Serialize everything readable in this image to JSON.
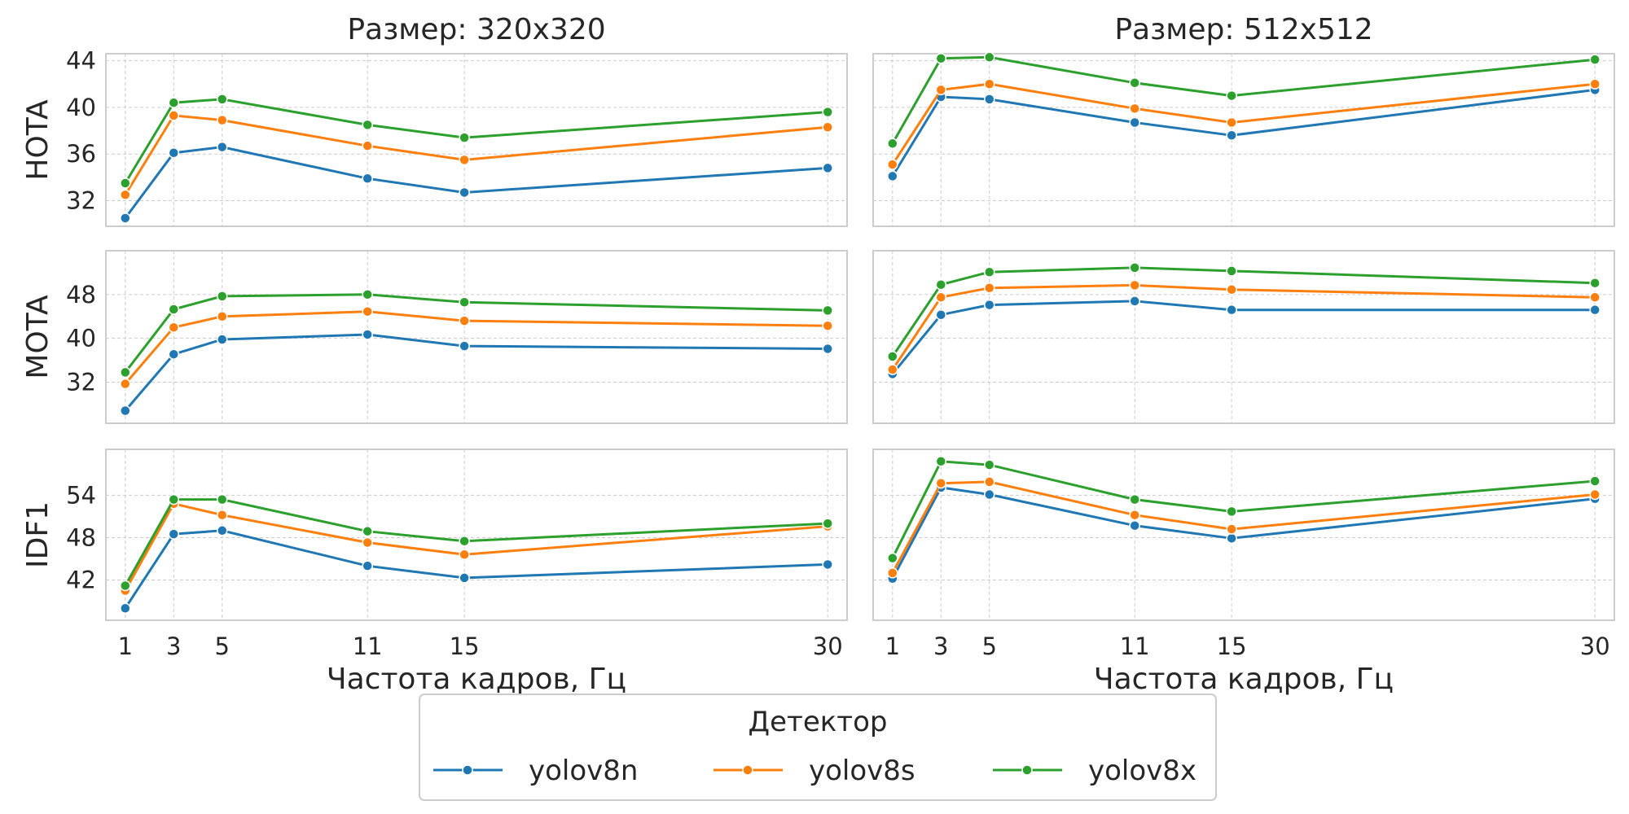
{
  "chart_data": {
    "type": "line",
    "x": [
      1,
      3,
      5,
      11,
      15,
      30
    ],
    "xlabel": "Частота кадров, Гц",
    "columns": [
      {
        "title": "Размер: 320x320"
      },
      {
        "title": "Размер: 512x512"
      }
    ],
    "rows": [
      {
        "ylabel": "HOTA",
        "ylim": [
          29.8,
          44.6
        ],
        "yticks": [
          32,
          36,
          40,
          44
        ]
      },
      {
        "ylabel": "MOTA",
        "ylim": [
          24.5,
          56.0
        ],
        "yticks": [
          32,
          40,
          48
        ]
      },
      {
        "ylabel": "IDF1",
        "ylim": [
          36.3,
          60.5
        ],
        "yticks": [
          42,
          48,
          54
        ]
      }
    ],
    "legend": {
      "title": "Детектор",
      "position": "bottom-center",
      "entries": [
        "yolov8n",
        "yolov8s",
        "yolov8x"
      ]
    },
    "colors": {
      "yolov8n": "#1f77b4",
      "yolov8s": "#ff7f0e",
      "yolov8x": "#2ca02c"
    },
    "grid": true,
    "panels": [
      {
        "row": 0,
        "col": 0,
        "series": [
          {
            "name": "yolov8n",
            "values": [
              30.5,
              36.1,
              36.6,
              33.9,
              32.7,
              34.8
            ]
          },
          {
            "name": "yolov8s",
            "values": [
              32.5,
              39.3,
              38.9,
              36.7,
              35.5,
              38.3
            ]
          },
          {
            "name": "yolov8x",
            "values": [
              33.5,
              40.4,
              40.7,
              38.5,
              37.4,
              39.6
            ]
          }
        ]
      },
      {
        "row": 0,
        "col": 1,
        "series": [
          {
            "name": "yolov8n",
            "values": [
              34.1,
              40.9,
              40.7,
              38.7,
              37.6,
              41.5
            ]
          },
          {
            "name": "yolov8s",
            "values": [
              35.1,
              41.5,
              42.0,
              39.9,
              38.7,
              42.0
            ]
          },
          {
            "name": "yolov8x",
            "values": [
              36.9,
              44.2,
              44.3,
              42.1,
              41.0,
              44.1
            ]
          }
        ]
      },
      {
        "row": 1,
        "col": 0,
        "series": [
          {
            "name": "yolov8n",
            "values": [
              26.8,
              37.1,
              39.8,
              40.7,
              38.6,
              38.1
            ]
          },
          {
            "name": "yolov8s",
            "values": [
              31.7,
              42.0,
              44.0,
              44.9,
              43.2,
              42.3
            ]
          },
          {
            "name": "yolov8x",
            "values": [
              33.8,
              45.3,
              47.7,
              48.0,
              46.6,
              45.1
            ]
          }
        ]
      },
      {
        "row": 1,
        "col": 1,
        "series": [
          {
            "name": "yolov8n",
            "values": [
              33.5,
              44.3,
              46.1,
              46.8,
              45.2,
              45.2
            ]
          },
          {
            "name": "yolov8s",
            "values": [
              34.3,
              47.5,
              49.2,
              49.7,
              48.9,
              47.5
            ]
          },
          {
            "name": "yolov8x",
            "values": [
              36.7,
              49.8,
              52.1,
              52.9,
              52.3,
              50.1
            ]
          }
        ]
      },
      {
        "row": 2,
        "col": 0,
        "series": [
          {
            "name": "yolov8n",
            "values": [
              38.0,
              48.5,
              49.0,
              44.0,
              42.3,
              44.2
            ]
          },
          {
            "name": "yolov8s",
            "values": [
              40.5,
              52.8,
              51.2,
              47.3,
              45.6,
              49.6
            ]
          },
          {
            "name": "yolov8x",
            "values": [
              41.2,
              53.4,
              53.4,
              48.9,
              47.5,
              50.0
            ]
          }
        ]
      },
      {
        "row": 2,
        "col": 1,
        "series": [
          {
            "name": "yolov8n",
            "values": [
              42.2,
              55.1,
              54.1,
              49.7,
              47.9,
              53.5
            ]
          },
          {
            "name": "yolov8s",
            "values": [
              43.0,
              55.7,
              55.9,
              51.2,
              49.2,
              54.1
            ]
          },
          {
            "name": "yolov8x",
            "values": [
              45.1,
              58.8,
              58.3,
              53.4,
              51.7,
              56.0
            ]
          }
        ]
      }
    ]
  }
}
